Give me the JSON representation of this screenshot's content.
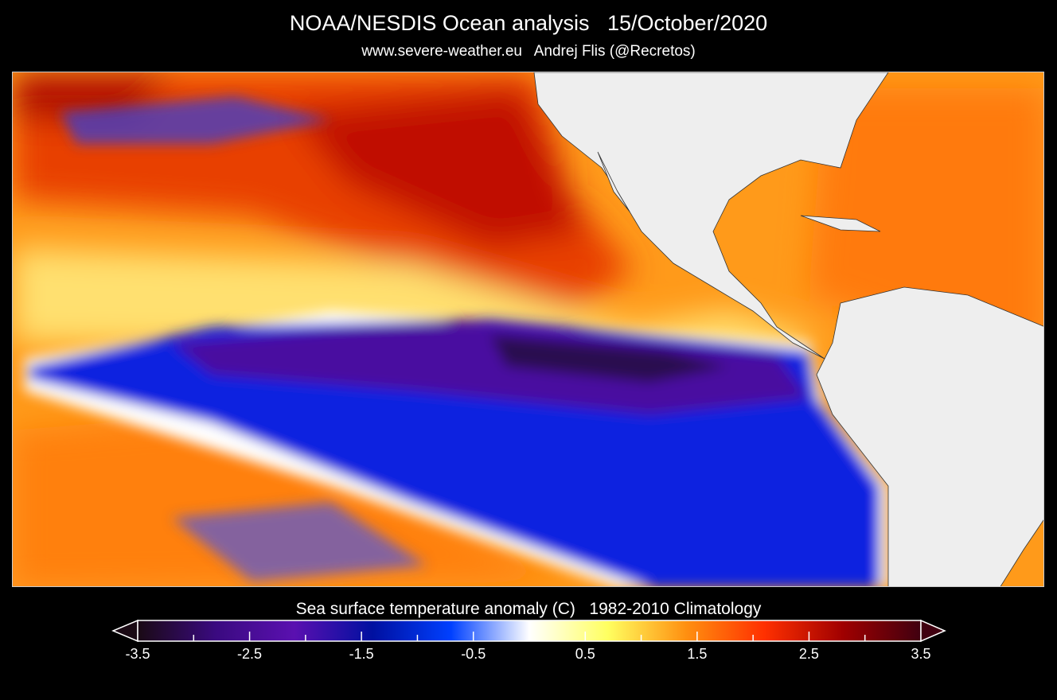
{
  "header": {
    "title": "NOAA/NESDIS Ocean analysis   15/October/2020",
    "subtitle": "www.severe-weather.eu   Andrej Flis (@Recretos)"
  },
  "map": {
    "variable": "Sea surface temperature anomaly",
    "colors": {
      "land": "#eeeeee",
      "strong_cold": "#3c0a8c",
      "cold": "#0a1ee0",
      "neutral": "#ffffff",
      "warm": "#ffa020",
      "hot": "#e02000",
      "extreme_hot": "#7a0010"
    }
  },
  "colorbar": {
    "title": "Sea surface temperature anomaly (C)   1982-2010 Climatology",
    "range": [
      -3.5,
      3.5
    ],
    "tick_labels": [
      "-3.5",
      "-2.5",
      "-1.5",
      "-0.5",
      "0.5",
      "1.5",
      "2.5",
      "3.5"
    ],
    "colors": [
      "#1a0a14",
      "#3a0a80",
      "#5a10b0",
      "#0010a0",
      "#0040ff",
      "#ffffff",
      "#ffff60",
      "#ff9010",
      "#ff3000",
      "#a00000",
      "#400010"
    ]
  }
}
